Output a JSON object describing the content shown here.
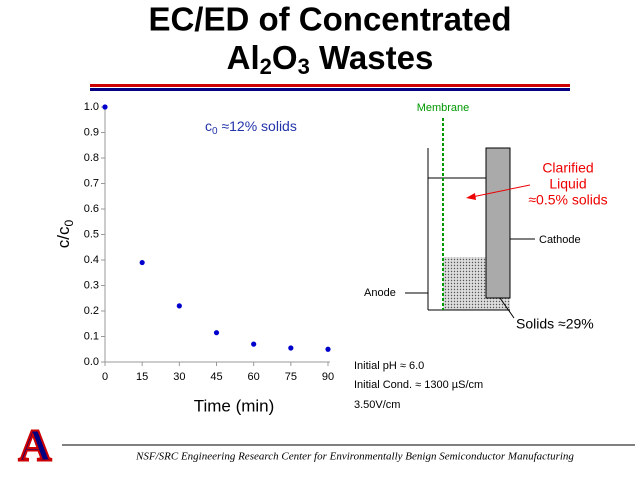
{
  "header": {
    "title_line1": "EC/ED of Concentrated",
    "title_line2": [
      "Al",
      "2",
      "O",
      "3",
      " Wastes"
    ]
  },
  "chart_data": {
    "type": "scatter",
    "x": [
      0,
      15,
      30,
      45,
      60,
      75,
      90
    ],
    "values": [
      1.0,
      0.39,
      0.22,
      0.115,
      0.07,
      0.055,
      0.05
    ],
    "color": "#0000cc",
    "xlim": [
      0,
      90
    ],
    "xticks": [
      0,
      15,
      30,
      45,
      60,
      75,
      90
    ],
    "ylim": [
      0,
      1.0
    ],
    "yticks": [
      {
        "value": 0,
        "label": "0.0"
      },
      0.1,
      0.2,
      0.3,
      0.4,
      0.5,
      0.6,
      0.7,
      0.8,
      0.9,
      {
        "value": 1.0,
        "label": "1.0"
      }
    ],
    "x_label": "Time (min)",
    "y_label": [
      "c/c",
      "0"
    ],
    "annotation": [
      "c",
      "0",
      " ≈12% solids"
    ]
  },
  "diagram": {
    "membrane": "Membrane",
    "clarified": [
      "Clarified",
      "Liquid",
      "≈0.5% solids"
    ],
    "cathode": "Cathode",
    "anode": "Anode",
    "solids": "Solids ≈29%",
    "conditions": [
      "Initial pH ≈ 6.0",
      "Initial Cond. ≈ 1300 µS/cm",
      "3.50V/cm"
    ]
  },
  "footer": {
    "logo": "A",
    "text": "NSF/SRC Engineering Research Center for Environmentally Benign Semiconductor Manufacturing"
  }
}
